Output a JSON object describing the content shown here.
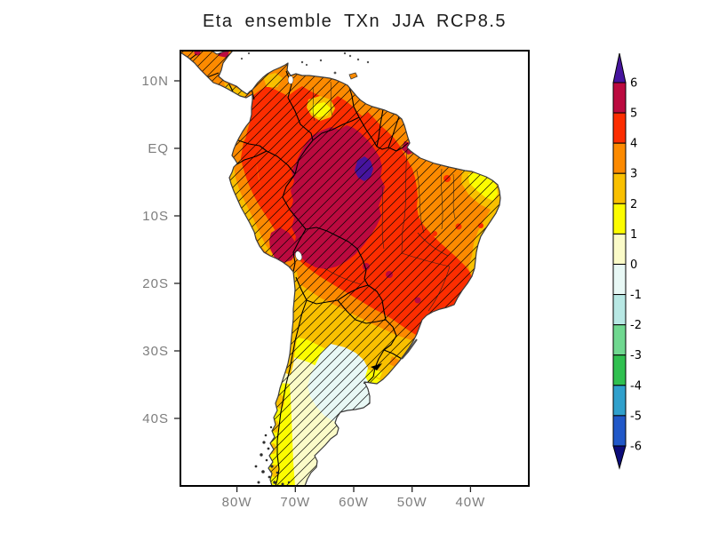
{
  "title": "Eta ensemble TXn JJA RCP8.5",
  "chart_data": {
    "type": "heatmap",
    "subtype": "filled-contour-climate-anomaly-map",
    "title": "Eta ensemble TXn JJA RCP8.5",
    "region": "South America and Central America",
    "map_extent": {
      "lon_range_deg": [
        -90,
        -30
      ],
      "lat_range_deg": [
        -50,
        14.5
      ]
    },
    "axes": {
      "lon_ticks": [
        {
          "label": "80W",
          "deg": -80
        },
        {
          "label": "70W",
          "deg": -70
        },
        {
          "label": "60W",
          "deg": -60
        },
        {
          "label": "50W",
          "deg": -50
        },
        {
          "label": "40W",
          "deg": -40
        }
      ],
      "lat_ticks": [
        {
          "label": "10N",
          "deg": 10
        },
        {
          "label": "EQ",
          "deg": 0
        },
        {
          "label": "10S",
          "deg": -10
        },
        {
          "label": "20S",
          "deg": -20
        },
        {
          "label": "30S",
          "deg": -30
        },
        {
          "label": "40S",
          "deg": -40
        }
      ]
    },
    "colorbar": {
      "orientation": "vertical",
      "levels": [
        6,
        5,
        4,
        3,
        2,
        1,
        0,
        -1,
        -2,
        -3,
        -4,
        -5,
        -6
      ],
      "bins": [
        {
          "range": "> 6",
          "color": "#46149e"
        },
        {
          "range": "5 to 6",
          "color": "#bb0a3f"
        },
        {
          "range": "4 to 5",
          "color": "#fc2d00"
        },
        {
          "range": "3 to 4",
          "color": "#fc8a00"
        },
        {
          "range": "2 to 3",
          "color": "#f9c000"
        },
        {
          "range": "1 to 2",
          "color": "#fcfc00"
        },
        {
          "range": "0 to 1",
          "color": "#fbfbc8"
        },
        {
          "range": "-1 to 0",
          "color": "#e8f8f5"
        },
        {
          "range": "-2 to -1",
          "color": "#b8e8e4"
        },
        {
          "range": "-3 to -2",
          "color": "#70d890"
        },
        {
          "range": "-4 to -3",
          "color": "#30c050"
        },
        {
          "range": "-5 to -4",
          "color": "#30a0cc"
        },
        {
          "range": "-6 to -5",
          "color": "#2158c8"
        },
        {
          "range": "< -6",
          "color": "#0c0c7a"
        }
      ]
    },
    "features": [
      {
        "area": "Central/western Amazon basin",
        "anomaly": "5 to 6",
        "note": "local maximum > 6 near 60W, 4S (small purple patch)"
      },
      {
        "area": "Most of tropical South America (Amazon, SE Brazil, Peru-Bolivia interior, S Venezuela)",
        "anomaly": "4 to 5"
      },
      {
        "area": "Guianas, Caribbean coast, NE Brazil interior, Andes fringe, Chaco, Central America",
        "anomaly": "3 to 4"
      },
      {
        "area": "NE Brazil coastal tip, central Venezuela pocket, Uruguay, Peru-Chile coastal strip",
        "anomaly": "1 to 3"
      },
      {
        "area": "Central-northern Argentina and Patagonia",
        "anomaly": "0 to 1"
      },
      {
        "area": "Pampas patch of central Argentina (~62W, 36S)",
        "anomaly": "-1 to 0"
      },
      {
        "area": "Patagonian Andes strip",
        "anomaly": "1 to 2"
      }
    ],
    "overlay": "Diagonal hatching ( / ) covers nearly the entire continent",
    "lakes_shown": [
      "Lake Titicaca",
      "Lake Maracaibo"
    ]
  }
}
